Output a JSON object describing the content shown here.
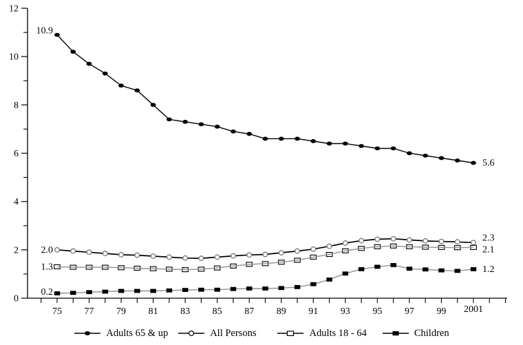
{
  "chart_data": {
    "type": "line",
    "title": "",
    "xlabel": "",
    "ylabel": "",
    "x": [
      1975,
      1976,
      1977,
      1978,
      1979,
      1980,
      1981,
      1982,
      1983,
      1984,
      1985,
      1986,
      1987,
      1988,
      1989,
      1990,
      1991,
      1992,
      1993,
      1994,
      1995,
      1996,
      1997,
      1998,
      1999,
      2000,
      2001
    ],
    "series": [
      {
        "name": "Adults 65 & up",
        "marker": "filled-circle",
        "line_color": "#000000",
        "marker_color": "#000000",
        "first_label": "10.9",
        "last_label": "5.6",
        "values": [
          10.9,
          10.2,
          9.7,
          9.3,
          8.8,
          8.6,
          8.0,
          7.4,
          7.3,
          7.2,
          7.1,
          6.9,
          6.8,
          6.6,
          6.6,
          6.6,
          6.5,
          6.4,
          6.4,
          6.3,
          6.2,
          6.2,
          6.0,
          5.9,
          5.8,
          5.7,
          5.6
        ]
      },
      {
        "name": "All Persons",
        "marker": "open-circle",
        "line_color": "#000000",
        "marker_color": "#787878",
        "first_label": "2.0",
        "last_label": "2.3",
        "values": [
          2.0,
          1.95,
          1.9,
          1.85,
          1.8,
          1.78,
          1.74,
          1.7,
          1.66,
          1.65,
          1.7,
          1.75,
          1.79,
          1.81,
          1.88,
          1.95,
          2.03,
          2.15,
          2.28,
          2.38,
          2.44,
          2.46,
          2.41,
          2.37,
          2.35,
          2.33,
          2.3
        ]
      },
      {
        "name": "Adults 18 - 64",
        "marker": "open-square",
        "line_color": "#8f8f8f",
        "marker_color": "#000000",
        "first_label": "1.3",
        "last_label": "2.1",
        "values": [
          1.3,
          1.28,
          1.28,
          1.28,
          1.26,
          1.24,
          1.22,
          1.2,
          1.18,
          1.2,
          1.25,
          1.33,
          1.4,
          1.43,
          1.49,
          1.57,
          1.7,
          1.81,
          1.96,
          2.06,
          2.13,
          2.16,
          2.13,
          2.11,
          2.1,
          2.09,
          2.1
        ]
      },
      {
        "name": "Children",
        "marker": "filled-square",
        "line_color": "#8f8f8f",
        "marker_color": "#000000",
        "first_label": "0.2",
        "last_label": "1.2",
        "values": [
          0.2,
          0.22,
          0.25,
          0.27,
          0.3,
          0.3,
          0.3,
          0.32,
          0.34,
          0.35,
          0.35,
          0.38,
          0.4,
          0.4,
          0.42,
          0.46,
          0.58,
          0.77,
          1.02,
          1.2,
          1.3,
          1.37,
          1.22,
          1.19,
          1.15,
          1.13,
          1.2
        ]
      }
    ],
    "y_axis": {
      "range": [
        0,
        12
      ],
      "major_ticks": [
        0,
        2,
        4,
        6,
        8,
        10,
        12
      ],
      "major_tick_labels": [
        "0",
        "2",
        "4",
        "6",
        "8",
        "10",
        "12"
      ],
      "minor_ticks": [
        1,
        3,
        5,
        7,
        9,
        11
      ],
      "grid": false
    },
    "x_axis": {
      "range": [
        1974,
        2003
      ],
      "tick_years": [
        1975,
        1977,
        1979,
        1981,
        1983,
        1985,
        1987,
        1989,
        1991,
        1993,
        1995,
        1997,
        1999,
        2001
      ],
      "tick_labels": [
        "75",
        "77",
        "79",
        "81",
        "83",
        "85",
        "87",
        "89",
        "91",
        "93",
        "95",
        "97",
        "99",
        "2001"
      ],
      "minor_tick_every_year": true,
      "grid": false
    },
    "legend": {
      "position": "bottom",
      "entries": [
        "Adults 65 & up",
        "All Persons",
        "Adults 18 - 64",
        "Children"
      ]
    }
  },
  "colors": {
    "background": "#ffffff",
    "axis": "#000000",
    "dark_line": "#000000",
    "gray_line": "#8f8f8f",
    "open_circle_stroke": "#787878"
  }
}
